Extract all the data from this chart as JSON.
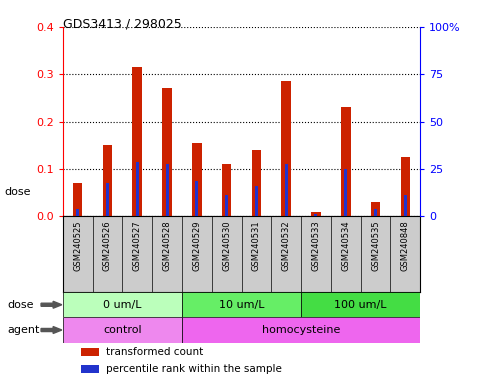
{
  "title": "GDS3413 / 298025",
  "samples": [
    "GSM240525",
    "GSM240526",
    "GSM240527",
    "GSM240528",
    "GSM240529",
    "GSM240530",
    "GSM240531",
    "GSM240532",
    "GSM240533",
    "GSM240534",
    "GSM240535",
    "GSM240848"
  ],
  "transformed_count": [
    0.07,
    0.15,
    0.315,
    0.27,
    0.155,
    0.11,
    0.14,
    0.285,
    0.01,
    0.23,
    0.03,
    0.125
  ],
  "percentile_rank_pct": [
    3.75,
    17.5,
    28.75,
    27.5,
    18.75,
    11.25,
    16.25,
    27.5,
    1.25,
    25.0,
    3.75,
    11.25
  ],
  "bar_color_red": "#cc2200",
  "bar_color_blue": "#2233cc",
  "left_ylim": [
    0,
    0.4
  ],
  "right_ylim": [
    0,
    100
  ],
  "left_yticks": [
    0.0,
    0.1,
    0.2,
    0.3,
    0.4
  ],
  "right_yticks": [
    0,
    25,
    50,
    75,
    100
  ],
  "right_yticklabels": [
    "0",
    "25",
    "50",
    "75",
    "100%"
  ],
  "dose_groups": [
    {
      "label": "0 um/L",
      "start": 0,
      "end": 4,
      "color": "#bbffbb"
    },
    {
      "label": "10 um/L",
      "start": 4,
      "end": 8,
      "color": "#66ee66"
    },
    {
      "label": "100 um/L",
      "start": 8,
      "end": 12,
      "color": "#44dd44"
    }
  ],
  "agent_groups": [
    {
      "label": "control",
      "start": 0,
      "end": 4,
      "color": "#ee88ee"
    },
    {
      "label": "homocysteine",
      "start": 4,
      "end": 12,
      "color": "#ee66ee"
    }
  ],
  "dose_label": "dose",
  "agent_label": "agent",
  "legend_red": "transformed count",
  "legend_blue": "percentile rank within the sample",
  "xticklabel_bg": "#cccccc",
  "plot_bg_color": "#ffffff"
}
